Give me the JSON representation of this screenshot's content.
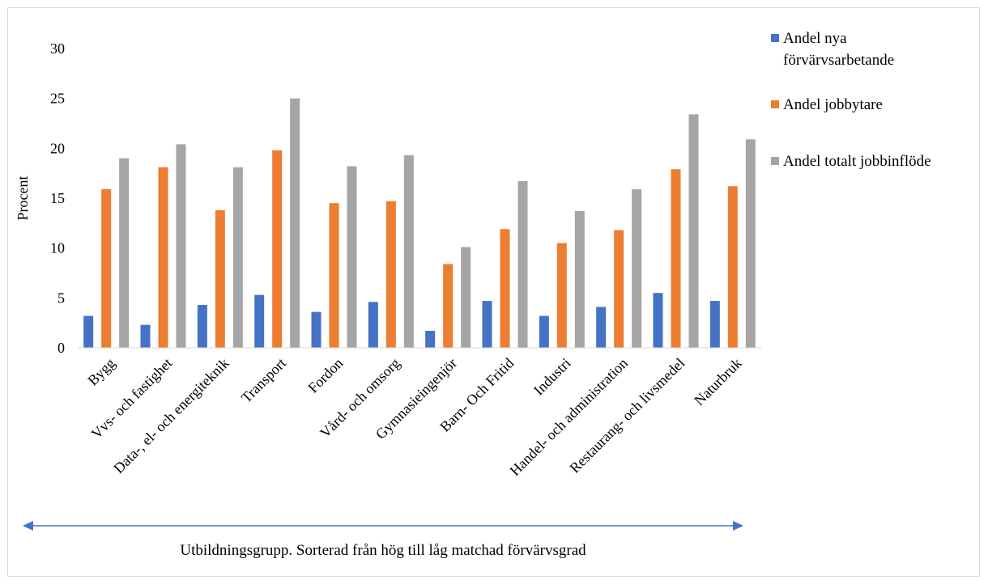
{
  "chart_data": {
    "type": "bar",
    "ylabel": "Procent",
    "xlabel": "Utbildningsgrupp. Sorterad från hög till låg matchad förvärvsgrad",
    "ylim": [
      0,
      30
    ],
    "yticks": [
      0,
      5,
      10,
      15,
      20,
      25,
      30
    ],
    "grid": false,
    "legend_position": "right",
    "categories": [
      "Bygg",
      "Vvs- och fastighet",
      "Data-, el- och energiteknik",
      "Transport",
      "Fordon",
      "Vård- och omsorg",
      "Gymnasieingenjör",
      "Barn- Och Fritid",
      "Industri",
      "Handel- och administration",
      "Restaurang- och livsmedel",
      "Naturbruk"
    ],
    "series": [
      {
        "name": "Andel nya förvärvsarbetande",
        "legend_lines": [
          "Andel nya",
          "förvärvsarbetande"
        ],
        "color": "#4472c4",
        "values": [
          3.2,
          2.3,
          4.3,
          5.3,
          3.6,
          4.6,
          1.7,
          4.7,
          3.2,
          4.1,
          5.5,
          4.7
        ]
      },
      {
        "name": "Andel jobbytare",
        "legend_lines": [
          "Andel jobbytare"
        ],
        "color": "#ed7d31",
        "values": [
          15.9,
          18.1,
          13.8,
          19.8,
          14.5,
          14.7,
          8.4,
          11.9,
          10.5,
          11.8,
          17.9,
          16.2
        ]
      },
      {
        "name": "Andel totalt jobbinflöde",
        "legend_lines": [
          "Andel totalt jobbinflöde"
        ],
        "color": "#a5a5a5",
        "values": [
          19.0,
          20.4,
          18.1,
          25.0,
          18.2,
          19.3,
          10.1,
          16.7,
          13.7,
          15.9,
          23.4,
          20.9
        ]
      }
    ],
    "colors": {
      "axis": "#d9d9d9",
      "arrow": "#4472c4",
      "text": "#000000"
    }
  }
}
